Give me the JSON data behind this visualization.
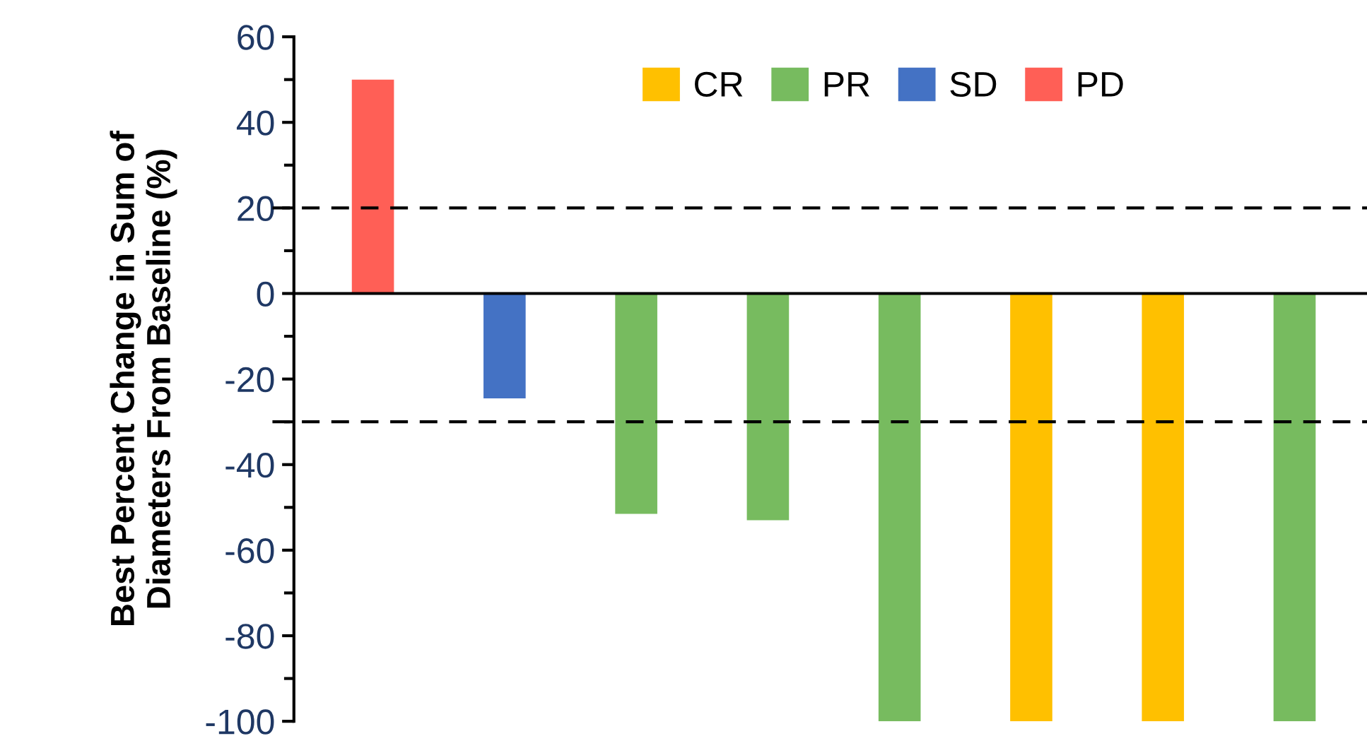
{
  "chart_data": {
    "type": "bar",
    "stacked": true,
    "ylabel": "Best Percent Change in Sum of\nDiameters From Baseline (%)",
    "categories": [
      null,
      null,
      null,
      null,
      null,
      null,
      null,
      null
    ],
    "series": [
      {
        "name": "CR",
        "color": "#ffc000",
        "values": [
          null,
          null,
          null,
          null,
          null,
          -100,
          -100,
          null
        ]
      },
      {
        "name": "PR",
        "color": "#77bb5f",
        "values": [
          null,
          null,
          -51.5,
          -53,
          -100,
          null,
          null,
          -100
        ]
      },
      {
        "name": "SD",
        "color": "#4472c4",
        "values": [
          null,
          -24.5,
          null,
          null,
          null,
          null,
          null,
          null
        ]
      },
      {
        "name": "PD",
        "color": "#ff5f56",
        "values": [
          50,
          null,
          null,
          null,
          null,
          null,
          null,
          null
        ]
      }
    ],
    "ylim": [
      -100,
      60
    ],
    "yticks": [
      -100,
      -80,
      -60,
      -40,
      -20,
      0,
      20,
      40,
      60
    ],
    "ref_lines": [
      {
        "axis": "y",
        "value": 20,
        "color": "#000000",
        "line_style": "dashed"
      },
      {
        "axis": "y",
        "value": -30,
        "color": "#000000",
        "line_style": "dashed"
      }
    ],
    "legend": "top",
    "grid": false
  }
}
